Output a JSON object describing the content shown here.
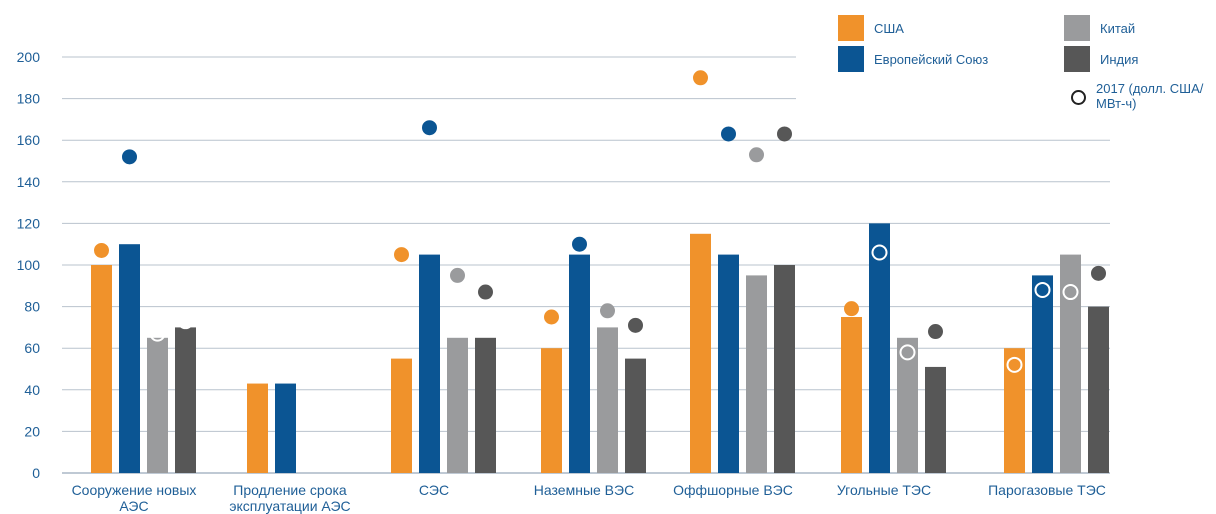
{
  "chart_data": {
    "type": "bar",
    "categories": [
      [
        "Сооружение новых",
        "АЭС"
      ],
      [
        "Продление срока",
        "эксплуатации АЭС"
      ],
      [
        "СЭС"
      ],
      [
        "Наземные ВЭС"
      ],
      [
        "Оффшорные ВЭС"
      ],
      [
        "Угольные ТЭС"
      ],
      [
        "Парогазовые ТЭС"
      ]
    ],
    "ylim": [
      0,
      200
    ],
    "yticks": [
      0,
      20,
      40,
      60,
      80,
      100,
      120,
      140,
      160,
      180,
      200
    ],
    "grid": true,
    "legend_position": "top-right",
    "series": [
      {
        "name": "США",
        "color": "#f0922b",
        "values": [
          100,
          43,
          55,
          60,
          115,
          75,
          60
        ],
        "markers": [
          107,
          null,
          105,
          75,
          190,
          79,
          52
        ]
      },
      {
        "name": "Европейский Союз",
        "color": "#0b5593",
        "values": [
          110,
          43,
          105,
          105,
          105,
          120,
          95
        ],
        "markers": [
          152,
          null,
          166,
          110,
          163,
          106,
          88
        ]
      },
      {
        "name": "Китай",
        "color": "#9a9b9d",
        "values": [
          65,
          null,
          65,
          70,
          95,
          65,
          105
        ],
        "markers": [
          67,
          null,
          95,
          78,
          153,
          58,
          87
        ]
      },
      {
        "name": "Индия",
        "color": "#575757",
        "values": [
          70,
          null,
          65,
          55,
          100,
          51,
          80
        ],
        "markers": [
          73,
          null,
          87,
          71,
          163,
          68,
          96
        ]
      }
    ],
    "marker_legend": [
      "2017 (долл. США/",
      "МВт-ч)"
    ]
  }
}
